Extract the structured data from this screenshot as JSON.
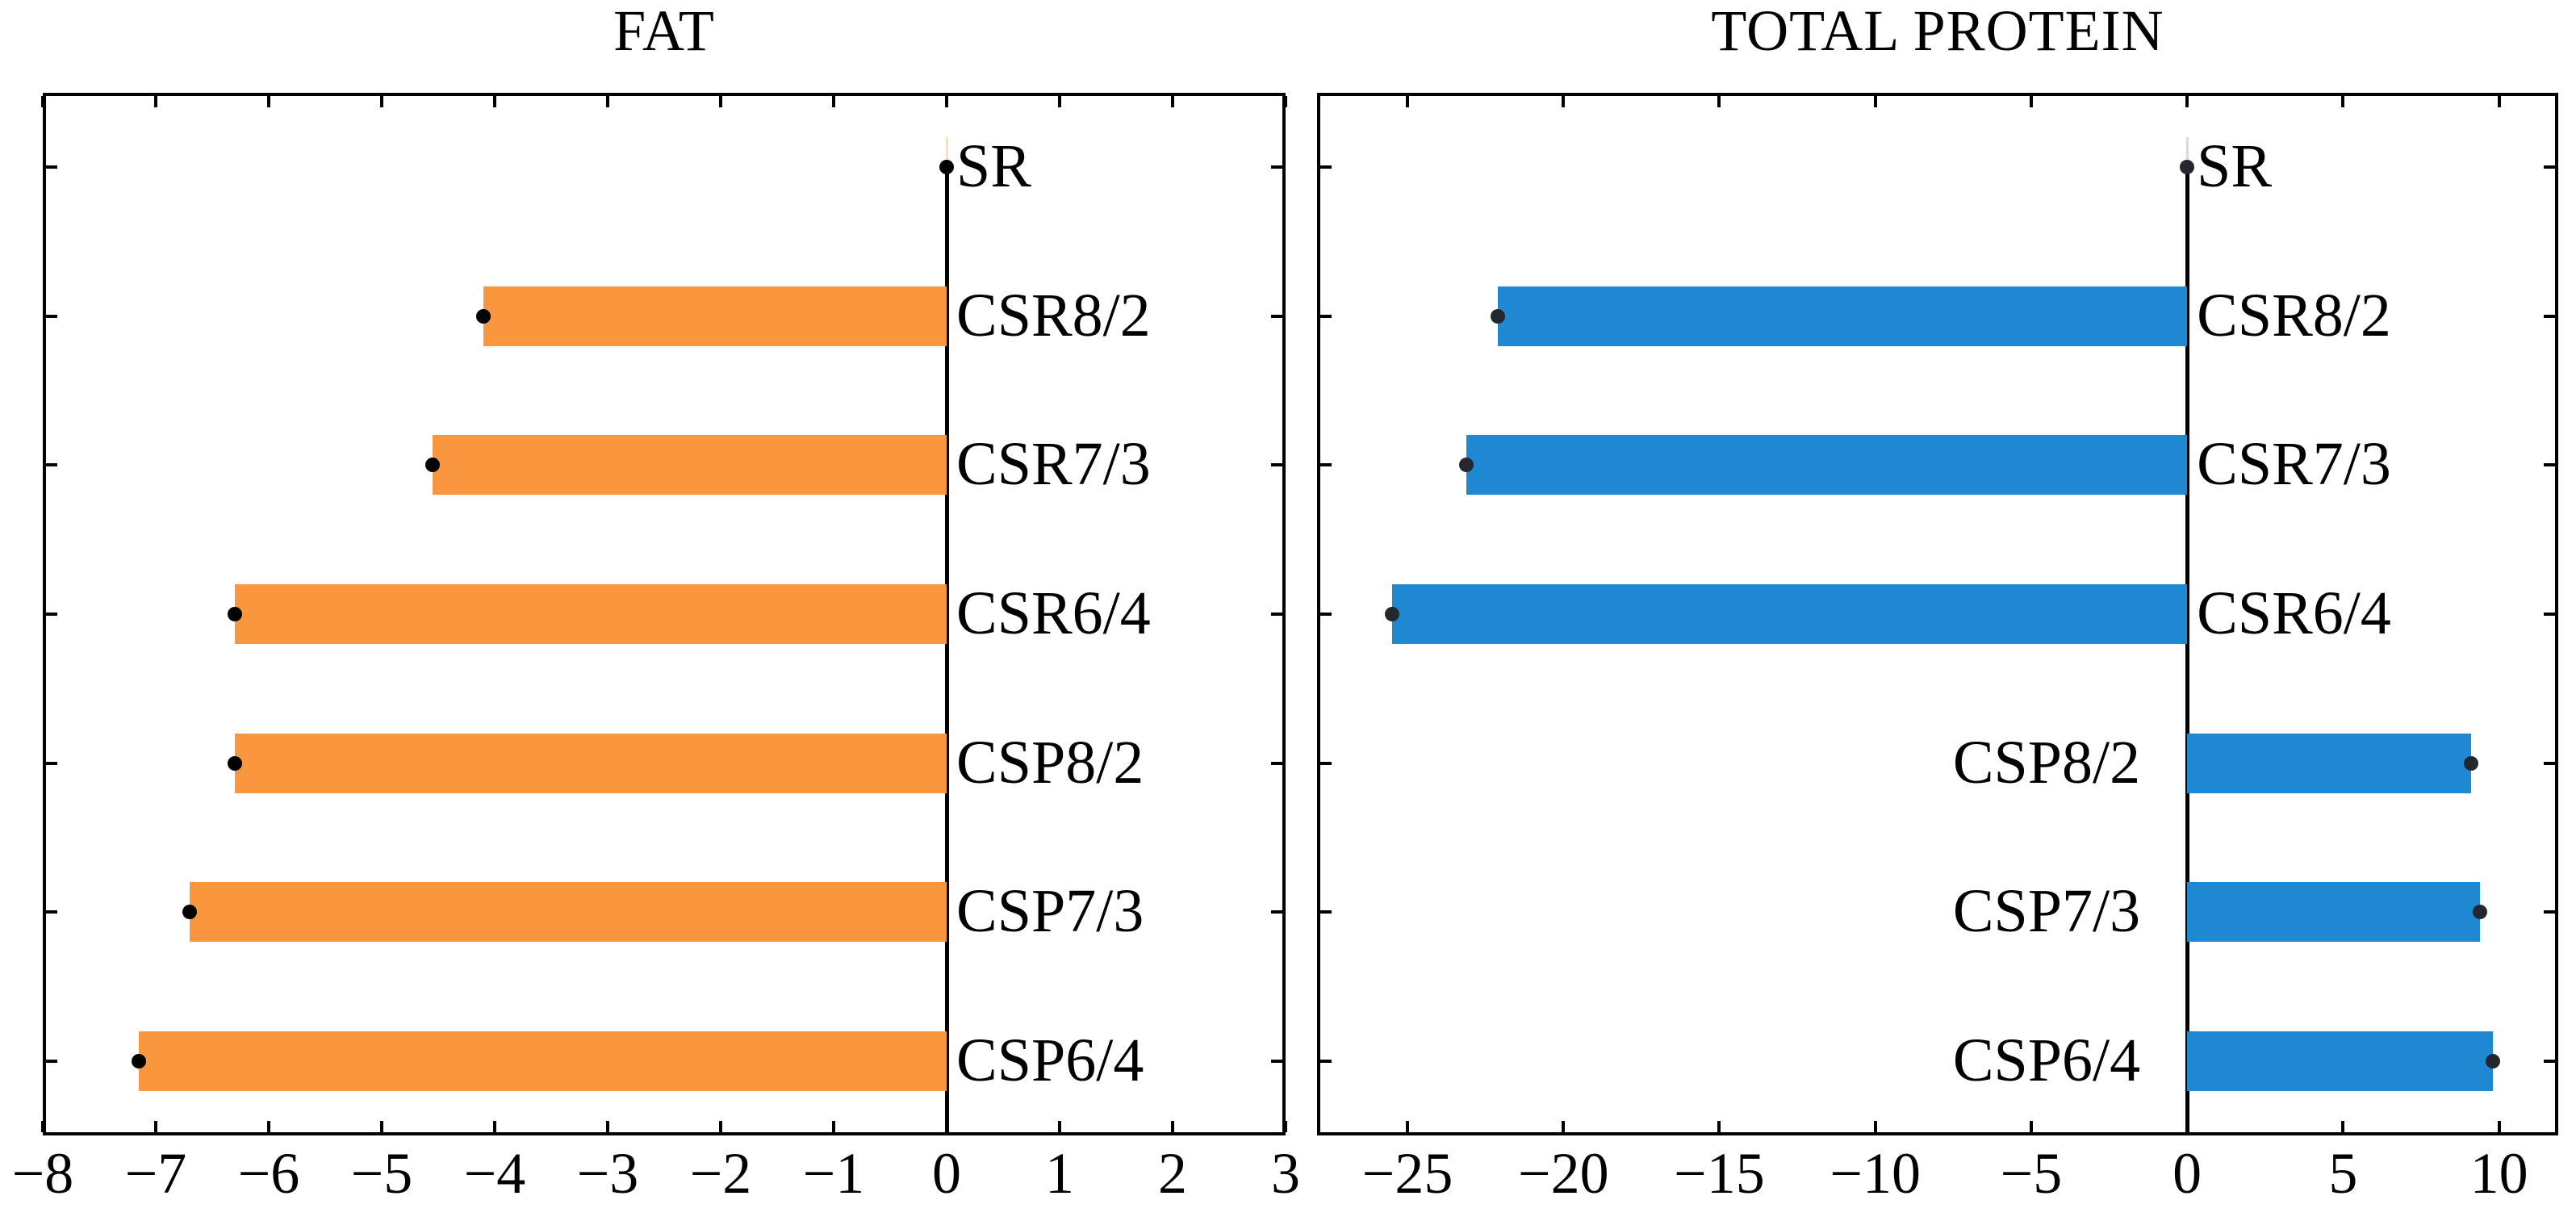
{
  "page": {
    "background": "#ffffff",
    "text_color": "#000000"
  },
  "chart_data": [
    {
      "type": "bar",
      "orientation": "horizontal",
      "title": "FAT",
      "categories": [
        "SR",
        "CSR8/2",
        "CSR7/3",
        "CSR6/4",
        "CSP8/2",
        "CSP7/3",
        "CSP6/4"
      ],
      "values": [
        0,
        -4.1,
        -4.55,
        -6.3,
        -6.3,
        -6.7,
        -7.15
      ],
      "bar_color": "#f9963e",
      "marker": "filled-circle",
      "marker_color": "#000000",
      "whisker_color": "#f2e3cb",
      "zero_line_color": "#000000",
      "xlim": [
        -8,
        3
      ],
      "xticks": [
        -8,
        -7,
        -6,
        -5,
        -4,
        -3,
        -2,
        -1,
        0,
        1,
        2,
        3
      ],
      "grid": false,
      "legend": null,
      "xlabel": "",
      "ylabel": ""
    },
    {
      "type": "bar",
      "orientation": "horizontal",
      "title": "TOTAL PROTEIN",
      "categories": [
        "SR",
        "CSR8/2",
        "CSR7/3",
        "CSR6/4",
        "CSP8/2",
        "CSP7/3",
        "CSP6/4"
      ],
      "values": [
        0,
        -22.1,
        -23.1,
        -25.5,
        9.1,
        9.4,
        9.8
      ],
      "bar_color": "#1e88d2",
      "marker": "filled-circle",
      "marker_color": "#24272e",
      "whisker_color": "#ccdbe6",
      "zero_line_color": "#000000",
      "xlim": [
        -27.9,
        11.9
      ],
      "xticks": [
        -25,
        -20,
        -15,
        -10,
        -5,
        0,
        5,
        10
      ],
      "grid": false,
      "legend": null,
      "xlabel": "",
      "ylabel": ""
    }
  ]
}
